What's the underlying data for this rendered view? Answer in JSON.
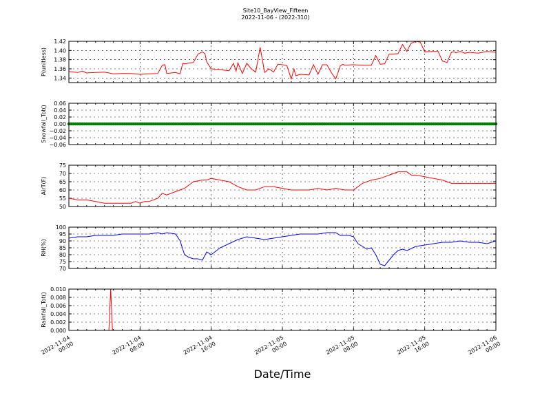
{
  "title": "Site10_BayView_Fifteen",
  "subtitle": "2022-11-06 - (2022-310)",
  "xlabel": "Date/Time",
  "x_ticks": [
    "2022-11-04\n00:00",
    "2022-11-04\n08:00",
    "2022-11-04\n16:00",
    "2022-11-05\n00:00",
    "2022-11-05\n08:00",
    "2022-11-05\n16:00",
    "2022-11-06\n00:00"
  ],
  "colors": {
    "red": "#ff0000",
    "green": "#008000",
    "blue": "#0000ff"
  },
  "chart_data": [
    {
      "type": "line",
      "ylabel": "P(unitless)",
      "xlim": [
        0,
        48
      ],
      "ylim": [
        1.33,
        1.42
      ],
      "yticks": [
        "1.34",
        "1.36",
        "1.38",
        "1.40",
        "1.42"
      ],
      "ytick_values": [
        1.34,
        1.36,
        1.38,
        1.4,
        1.42
      ],
      "series": [
        {
          "color": "#ff0000",
          "x": [
            0,
            1,
            1.5,
            2,
            3,
            4,
            5,
            6,
            7,
            8,
            9,
            10,
            10.5,
            10.8,
            11,
            12,
            12.5,
            12.8,
            13,
            14,
            14.5,
            15,
            15.3,
            15.5,
            16,
            17,
            18,
            18.5,
            18.8,
            19,
            19.5,
            20,
            20.5,
            21,
            21.5,
            22,
            22.5,
            23,
            23.5,
            24,
            24.5,
            25,
            25.3,
            25.5,
            26,
            27,
            27.5,
            28,
            28.3,
            28.5,
            29,
            29.5,
            30,
            30.5,
            30.8,
            31,
            32,
            33,
            34,
            34.5,
            35,
            35.5,
            36,
            37,
            37.5,
            38,
            38.3,
            38.5,
            39,
            39.5,
            40,
            41,
            41.5,
            42,
            42.5,
            43,
            43.3,
            43.5,
            44,
            44.5,
            45,
            46,
            47,
            48
          ],
          "y": [
            1.354,
            1.352,
            1.355,
            1.351,
            1.352,
            1.353,
            1.349,
            1.35,
            1.35,
            1.348,
            1.349,
            1.35,
            1.368,
            1.369,
            1.35,
            1.352,
            1.349,
            1.372,
            1.371,
            1.374,
            1.392,
            1.397,
            1.393,
            1.375,
            1.36,
            1.358,
            1.356,
            1.372,
            1.355,
            1.373,
            1.35,
            1.372,
            1.36,
            1.353,
            1.407,
            1.352,
            1.36,
            1.353,
            1.37,
            1.369,
            1.367,
            1.338,
            1.36,
            1.345,
            1.348,
            1.347,
            1.369,
            1.348,
            1.36,
            1.369,
            1.369,
            1.352,
            1.338,
            1.366,
            1.37,
            1.368,
            1.369,
            1.368,
            1.368,
            1.389,
            1.37,
            1.371,
            1.392,
            1.393,
            1.413,
            1.398,
            1.41,
            1.416,
            1.42,
            1.418,
            1.397,
            1.398,
            1.398,
            1.377,
            1.374,
            1.396,
            1.397,
            1.395,
            1.398,
            1.394,
            1.396,
            1.394,
            1.398,
            1.396
          ]
        }
      ]
    },
    {
      "type": "scatter",
      "ylabel": "Snowfall_Tot()",
      "xlim": [
        0,
        48
      ],
      "ylim": [
        -0.06,
        0.06
      ],
      "yticks": [
        "0.06",
        "0.04",
        "0.02",
        "0.00",
        "−0.02",
        "−0.04",
        "−0.06"
      ],
      "ytick_values": [
        0.06,
        0.04,
        0.02,
        0,
        -0.02,
        -0.04,
        -0.06
      ],
      "series": [
        {
          "color": "#008000",
          "x": [
            0,
            48
          ],
          "y": [
            0,
            0
          ],
          "marker": "dense"
        }
      ]
    },
    {
      "type": "line",
      "ylabel": "AirT(F)",
      "xlim": [
        0,
        48
      ],
      "ylim": [
        50,
        75
      ],
      "yticks": [
        "50",
        "55",
        "60",
        "65",
        "70",
        "75"
      ],
      "ytick_values": [
        50,
        55,
        60,
        65,
        70,
        75
      ],
      "series": [
        {
          "color": "#ff0000",
          "x": [
            0,
            1,
            2,
            3,
            4,
            5,
            6,
            7,
            7.5,
            8,
            8.5,
            9,
            10,
            10.5,
            11,
            12,
            13,
            14,
            15,
            15.5,
            16,
            17,
            18,
            19,
            20,
            21,
            22,
            23,
            24,
            25,
            26,
            27,
            28,
            29,
            30,
            31,
            32,
            32.5,
            33,
            34,
            35,
            36,
            37,
            38,
            38.5,
            39,
            40,
            41,
            42,
            43,
            44,
            45,
            46,
            47,
            48
          ],
          "y": [
            55,
            54,
            54,
            53,
            52,
            52,
            52,
            52,
            53,
            52,
            53,
            53,
            55,
            58,
            57,
            59,
            61,
            65,
            66,
            66,
            67,
            66,
            65,
            62,
            60,
            60,
            62,
            62,
            61,
            60,
            60,
            60,
            61,
            60,
            61,
            60,
            60,
            62,
            64,
            66,
            67,
            69,
            71,
            71,
            69,
            69,
            68,
            67,
            66,
            64,
            64,
            64,
            64,
            64,
            64
          ]
        }
      ]
    },
    {
      "type": "line",
      "ylabel": "RH(%)",
      "xlim": [
        0,
        48
      ],
      "ylim": [
        70,
        100
      ],
      "yticks": [
        "70",
        "75",
        "80",
        "85",
        "90",
        "95",
        "100"
      ],
      "ytick_values": [
        70,
        75,
        80,
        85,
        90,
        95,
        100
      ],
      "series": [
        {
          "color": "#0000ff",
          "x": [
            0,
            1,
            2,
            3,
            4,
            5,
            6,
            7,
            8,
            9,
            10,
            10.5,
            11,
            12,
            12.5,
            13,
            13.5,
            14,
            14.5,
            15,
            15.5,
            16,
            17,
            18,
            19,
            20,
            21,
            22,
            23,
            24,
            25,
            26,
            27,
            28,
            29,
            30,
            30.5,
            31,
            31.5,
            32,
            32.5,
            33,
            33.5,
            34,
            34.5,
            35,
            35.5,
            36,
            36.5,
            37,
            37.5,
            38,
            39,
            40,
            41,
            42,
            43,
            44,
            45,
            46,
            47,
            48
          ],
          "y": [
            92,
            93,
            93,
            94,
            94,
            94,
            95,
            95,
            95,
            95,
            96,
            95,
            96,
            95,
            90,
            80,
            78,
            77,
            77,
            76,
            82,
            80,
            85,
            88,
            91,
            93,
            92,
            91,
            92,
            93,
            94,
            95,
            95,
            95,
            96,
            96,
            94,
            94,
            94,
            93,
            88,
            86,
            84,
            85,
            80,
            73,
            72,
            76,
            80,
            83,
            84,
            83,
            86,
            87,
            88,
            89,
            89,
            90,
            89,
            89,
            88,
            90
          ]
        }
      ]
    },
    {
      "type": "line",
      "ylabel": "Rainfall_Tot()",
      "xlim": [
        0,
        48
      ],
      "ylim": [
        0,
        0.01
      ],
      "yticks": [
        "0.000",
        "0.002",
        "0.004",
        "0.006",
        "0.008",
        "0.010"
      ],
      "ytick_values": [
        0,
        0.002,
        0.004,
        0.006,
        0.008,
        0.01
      ],
      "series": [
        {
          "color": "#ff0000",
          "x": [
            0,
            4.5,
            4.7,
            4.9,
            48
          ],
          "y": [
            0,
            0,
            0.01,
            0,
            0
          ]
        }
      ]
    }
  ]
}
